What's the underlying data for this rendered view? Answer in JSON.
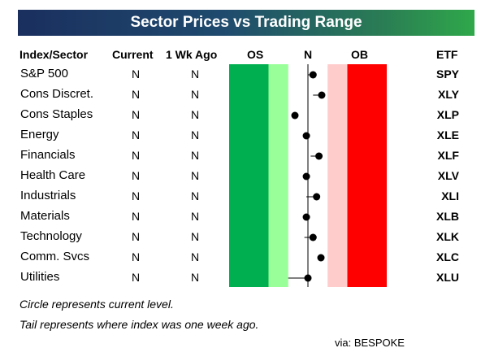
{
  "title": "Sector Prices vs Trading Range",
  "headers": {
    "sector": "Index/Sector",
    "current": "Current",
    "week_ago": "1 Wk Ago",
    "os": "OS",
    "n": "N",
    "ob": "OB",
    "etf": "ETF"
  },
  "notes": [
    "Circle represents current level.",
    "Tail represents where index was one week ago."
  ],
  "source": "via: BESPOKE",
  "colors": {
    "title_start": "#1a2f5e",
    "title_end": "#2fa84a",
    "os_dark": "#00b050",
    "os_light": "#99ff99",
    "ob_light": "#ffcccc",
    "ob_dark": "#ff0000",
    "marker": "#000000"
  },
  "chart_data": {
    "type": "range",
    "title": "Sector Prices vs Trading Range",
    "scale_labels": [
      "OS",
      "N",
      "OB"
    ],
    "xlim": [
      -3,
      3
    ],
    "zones": [
      {
        "label": "OS",
        "from": -2,
        "to": -1,
        "color": "#00b050"
      },
      {
        "label": "OS",
        "from": -1,
        "to": -0.5,
        "color": "#99ff99"
      },
      {
        "label": "OB",
        "from": 0.5,
        "to": 1,
        "color": "#ffcccc"
      },
      {
        "label": "OB",
        "from": 1,
        "to": 2,
        "color": "#ff0000"
      }
    ],
    "rows": [
      {
        "sector": "S&P 500",
        "current": "N",
        "week_ago": "N",
        "etf": "SPY",
        "value": 0.13,
        "prev": 0.0
      },
      {
        "sector": "Cons Discret.",
        "current": "N",
        "week_ago": "N",
        "etf": "XLY",
        "value": 0.35,
        "prev": 0.13
      },
      {
        "sector": "Cons Staples",
        "current": "N",
        "week_ago": "N",
        "etf": "XLP",
        "value": -0.33,
        "prev": -0.33
      },
      {
        "sector": "Energy",
        "current": "N",
        "week_ago": "N",
        "etf": "XLE",
        "value": -0.04,
        "prev": 0.0
      },
      {
        "sector": "Financials",
        "current": "N",
        "week_ago": "N",
        "etf": "XLF",
        "value": 0.28,
        "prev": 0.07
      },
      {
        "sector": "Health Care",
        "current": "N",
        "week_ago": "N",
        "etf": "XLV",
        "value": -0.04,
        "prev": 0.02
      },
      {
        "sector": "Industrials",
        "current": "N",
        "week_ago": "N",
        "etf": "XLI",
        "value": 0.22,
        "prev": -0.04
      },
      {
        "sector": "Materials",
        "current": "N",
        "week_ago": "N",
        "etf": "XLB",
        "value": -0.04,
        "prev": 0.04
      },
      {
        "sector": "Technology",
        "current": "N",
        "week_ago": "N",
        "etf": "XLK",
        "value": 0.13,
        "prev": -0.09
      },
      {
        "sector": "Comm. Svcs",
        "current": "N",
        "week_ago": "N",
        "etf": "XLC",
        "value": 0.33,
        "prev": 0.33
      },
      {
        "sector": "Utilities",
        "current": "N",
        "week_ago": "N",
        "etf": "XLU",
        "value": 0.0,
        "prev": -0.5
      }
    ]
  }
}
